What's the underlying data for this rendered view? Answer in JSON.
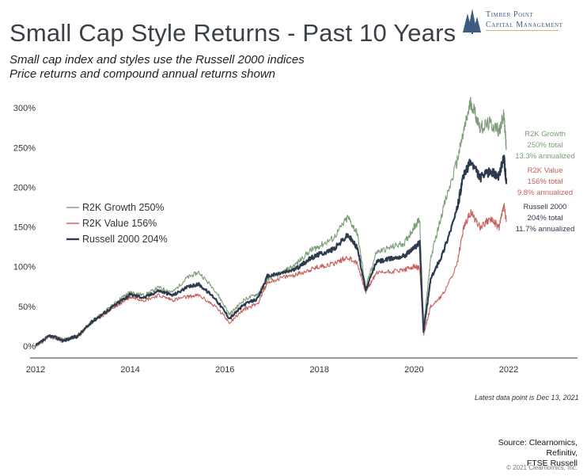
{
  "logo": {
    "line1": "Timber Point",
    "line2": "Capital Management",
    "icon": "pine-trees-icon",
    "color": "#3d5a80"
  },
  "header": {
    "title": "Small Cap Style Returns - Past 10 Years",
    "subtitle_line1": "Small cap index and styles use the Russell 2000 indices",
    "subtitle_line2": "Price returns and compound annual returns shown"
  },
  "footer": {
    "note": "Latest data point is Dec 13, 2021",
    "source_lines": [
      "Source: Clearnomics,",
      "Refinitiv,",
      "FTSE Russell"
    ],
    "copyright": "© 2021 Clearnomics, Inc."
  },
  "chart_data": {
    "type": "line",
    "title": "",
    "xlabel": "",
    "ylabel": "",
    "xlim": [
      2012,
      2023.5
    ],
    "ylim": [
      -15,
      310
    ],
    "x_ticks": [
      2012,
      2014,
      2016,
      2018,
      2020,
      2022
    ],
    "y_ticks": [
      0,
      50,
      100,
      150,
      200,
      250,
      300
    ],
    "y_tick_labels": [
      "0%",
      "50%",
      "100%",
      "150%",
      "200%",
      "250%",
      "300%"
    ],
    "grid": false,
    "legend": "left",
    "legend_entries": [
      "R2K Growth 250%",
      "R2K Value 156%",
      "Russell 2000 204%"
    ],
    "series": [
      {
        "name": "R2K Growth 250%",
        "color": "#7a9e76",
        "end_labels": [
          "R2K Growth",
          "250% total",
          "13.3% annualized"
        ],
        "x": [
          2012,
          2012.3,
          2012.6,
          2012.9,
          2013.2,
          2013.5,
          2013.8,
          2014.0,
          2014.3,
          2014.6,
          2014.9,
          2015.2,
          2015.45,
          2015.8,
          2016.1,
          2016.4,
          2016.7,
          2016.9,
          2017.2,
          2017.5,
          2017.8,
          2018.0,
          2018.3,
          2018.6,
          2018.8,
          2018.98,
          2019.2,
          2019.5,
          2019.8,
          2020.0,
          2020.12,
          2020.2,
          2020.35,
          2020.6,
          2020.9,
          2021.05,
          2021.2,
          2021.4,
          2021.6,
          2021.8,
          2021.9,
          2021.95
        ],
        "values": [
          0,
          14,
          8,
          12,
          32,
          45,
          60,
          68,
          64,
          74,
          68,
          86,
          93,
          70,
          40,
          58,
          66,
          84,
          92,
          103,
          120,
          126,
          136,
          162,
          142,
          74,
          118,
          124,
          130,
          150,
          160,
          22,
          110,
          170,
          230,
          270,
          308,
          275,
          280,
          272,
          290,
          250
        ]
      },
      {
        "name": "R2K Value 156%",
        "color": "#c7615a",
        "end_labels": [
          "R2K Value",
          "156% total",
          "9.8% annualized"
        ],
        "x": [
          2012,
          2012.3,
          2012.6,
          2012.9,
          2013.2,
          2013.5,
          2013.8,
          2014.0,
          2014.3,
          2014.6,
          2014.9,
          2015.2,
          2015.45,
          2015.8,
          2016.1,
          2016.4,
          2016.7,
          2016.9,
          2017.2,
          2017.5,
          2017.8,
          2018.0,
          2018.3,
          2018.6,
          2018.8,
          2018.98,
          2019.2,
          2019.5,
          2019.8,
          2020.0,
          2020.12,
          2020.2,
          2020.35,
          2020.6,
          2020.9,
          2021.05,
          2021.2,
          2021.4,
          2021.6,
          2021.8,
          2021.9,
          2021.95
        ],
        "values": [
          0,
          12,
          6,
          14,
          30,
          42,
          54,
          62,
          58,
          64,
          58,
          62,
          64,
          50,
          30,
          46,
          54,
          80,
          86,
          90,
          96,
          100,
          104,
          112,
          104,
          68,
          92,
          94,
          96,
          100,
          98,
          14,
          50,
          64,
          100,
          150,
          168,
          150,
          160,
          150,
          178,
          156
        ]
      },
      {
        "name": "Russell 2000 204%",
        "color": "#2e3a4e",
        "end_labels": [
          "Russell 2000",
          "204% total",
          "11.7% annualized"
        ],
        "x": [
          2012,
          2012.3,
          2012.6,
          2012.9,
          2013.2,
          2013.5,
          2013.8,
          2014.0,
          2014.3,
          2014.6,
          2014.9,
          2015.2,
          2015.45,
          2015.8,
          2016.1,
          2016.4,
          2016.7,
          2016.9,
          2017.2,
          2017.5,
          2017.8,
          2018.0,
          2018.3,
          2018.6,
          2018.8,
          2018.98,
          2019.2,
          2019.5,
          2019.8,
          2020.0,
          2020.12,
          2020.2,
          2020.35,
          2020.6,
          2020.9,
          2021.05,
          2021.2,
          2021.4,
          2021.6,
          2021.8,
          2021.9,
          2021.95
        ],
        "values": [
          0,
          13,
          7,
          13,
          31,
          44,
          57,
          65,
          61,
          70,
          64,
          74,
          78,
          60,
          35,
          52,
          60,
          88,
          92,
          97,
          110,
          116,
          122,
          140,
          124,
          70,
          106,
          110,
          114,
          124,
          130,
          18,
          84,
          116,
          170,
          215,
          232,
          212,
          220,
          214,
          238,
          204
        ]
      }
    ]
  }
}
